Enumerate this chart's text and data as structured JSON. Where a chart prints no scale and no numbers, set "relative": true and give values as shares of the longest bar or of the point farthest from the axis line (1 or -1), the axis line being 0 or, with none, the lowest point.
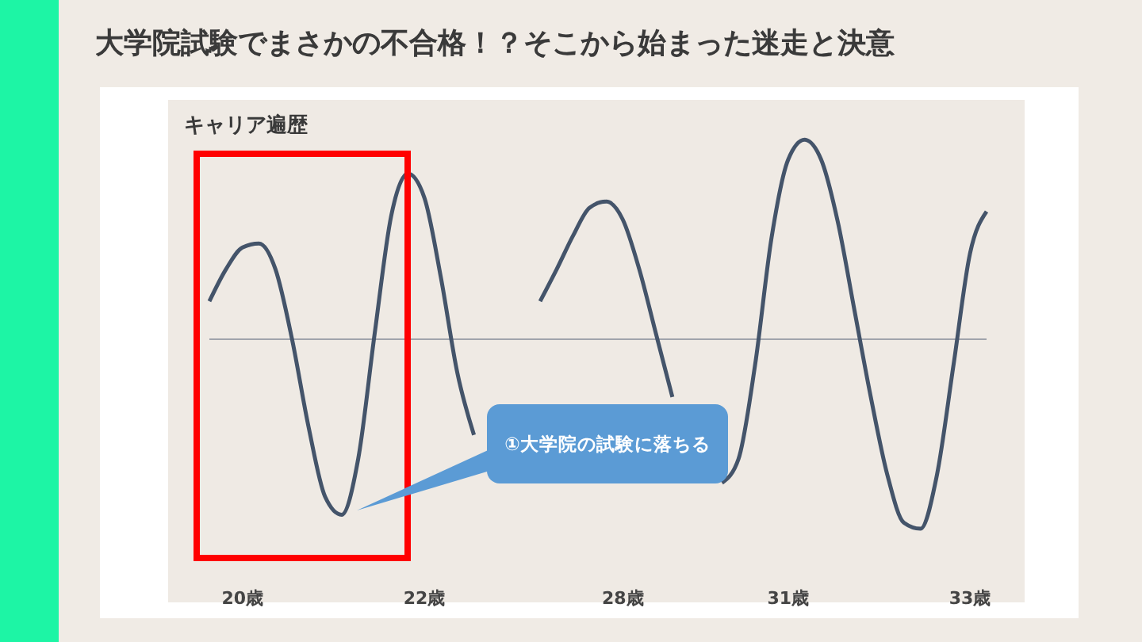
{
  "chart_data": {
    "type": "line",
    "title": "大学院試験でまさかの不合格！？そこから始まった迷走と決意",
    "subtitle": "キャリア遍歴",
    "relative": true,
    "categories": [
      null,
      null,
      "20歳",
      null,
      null,
      null,
      null,
      null,
      null,
      null,
      null,
      null,
      null,
      "22歳",
      null,
      null,
      null,
      null,
      null,
      null,
      null,
      null,
      null,
      null,
      null,
      "28歳",
      null,
      null,
      null,
      null,
      null,
      null,
      null,
      null,
      null,
      "31歳",
      null,
      null,
      null,
      null,
      null,
      null,
      null,
      null,
      null,
      null,
      "33歳",
      null
    ],
    "series": [
      {
        "color": "#44546a",
        "values": [
          0.19,
          0.35,
          0.46,
          0.48,
          0.35,
          0,
          -0.44,
          -0.79,
          -0.88,
          -0.6,
          0.03,
          0.62,
          0.83,
          0.71,
          0.31,
          -0.17,
          -0.48,
          null,
          null,
          null,
          0.19,
          0.35,
          0.52,
          0.66,
          0.69,
          0.6,
          0.35,
          0.03,
          -0.29,
          null,
          null,
          -0.72,
          -0.6,
          -0.13,
          0.51,
          0.9,
          1,
          0.9,
          0.59,
          0.15,
          -0.29,
          -0.68,
          -0.92,
          -0.95,
          -0.68,
          -0.13,
          0.43,
          0.64
        ]
      }
    ],
    "annotations": [
      "①大学院の試験に落ちる"
    ]
  }
}
